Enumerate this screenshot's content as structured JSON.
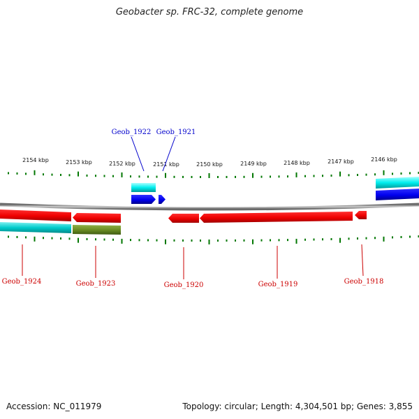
{
  "title": "Geobacter sp. FRC-32, complete genome",
  "footer": {
    "accession": "Accession: NC_011979",
    "summary": "Topology: circular; Length: 4,304,501 bp; Genes: 3,855"
  },
  "colors": {
    "backbone": "#8a8a8a",
    "tick": "#007700",
    "forward_cds": "#0000ee",
    "forward_gene": "#00eeee",
    "reverse_cds": "#ee0000",
    "reverse_gene_cyan": "#00cccc",
    "reverse_gene_olive": "#6b8e23",
    "label_forward": "#0000cc",
    "label_reverse": "#cc0000"
  },
  "kbp_labels": [
    "2154 kbp",
    "2153 kbp",
    "2152 kbp",
    "2151 kbp",
    "2150 kbp",
    "2149 kbp",
    "2148 kbp",
    "2147 kbp",
    "2146 kbp"
  ],
  "forward_features": [
    {
      "label": "Geob_1922"
    },
    {
      "label": "Geob_1921"
    }
  ],
  "reverse_features": [
    {
      "label": "Geob_1924"
    },
    {
      "label": "Geob_1923"
    },
    {
      "label": "Geob_1920"
    },
    {
      "label": "Geob_1919"
    },
    {
      "label": "Geob_1918"
    }
  ]
}
